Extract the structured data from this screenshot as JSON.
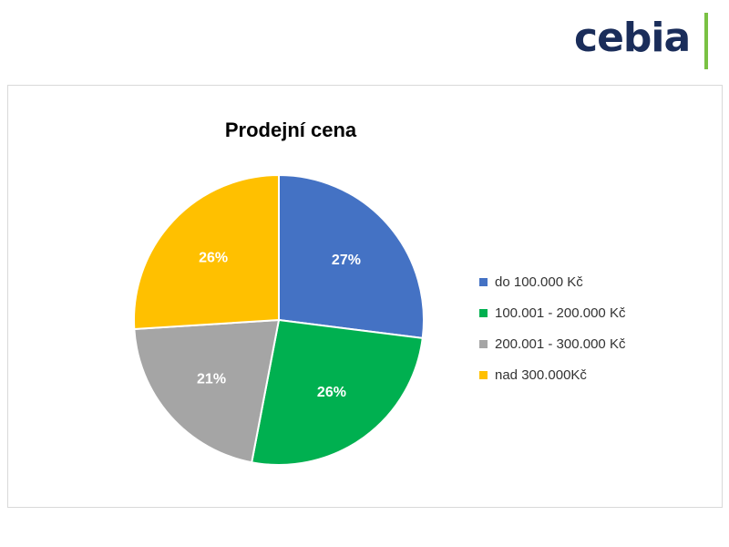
{
  "logo": {
    "text": "cebia",
    "color": "#1a2d5a",
    "bar_color": "#7ac143"
  },
  "chart_data": {
    "type": "pie",
    "title": "Prodejní cena",
    "legend_position": "right",
    "series": [
      {
        "name": "do 100.000 Kč",
        "value": 27,
        "label": "27%",
        "color": "#4472c4"
      },
      {
        "name": "100.001 - 200.000 Kč",
        "value": 26,
        "label": "26%",
        "color": "#00b050"
      },
      {
        "name": "200.001 - 300.000 Kč",
        "value": 21,
        "label": "21%",
        "color": "#a5a5a5"
      },
      {
        "name": "nad 300.000Kč",
        "value": 26,
        "label": "26%",
        "color": "#ffc000"
      }
    ]
  }
}
